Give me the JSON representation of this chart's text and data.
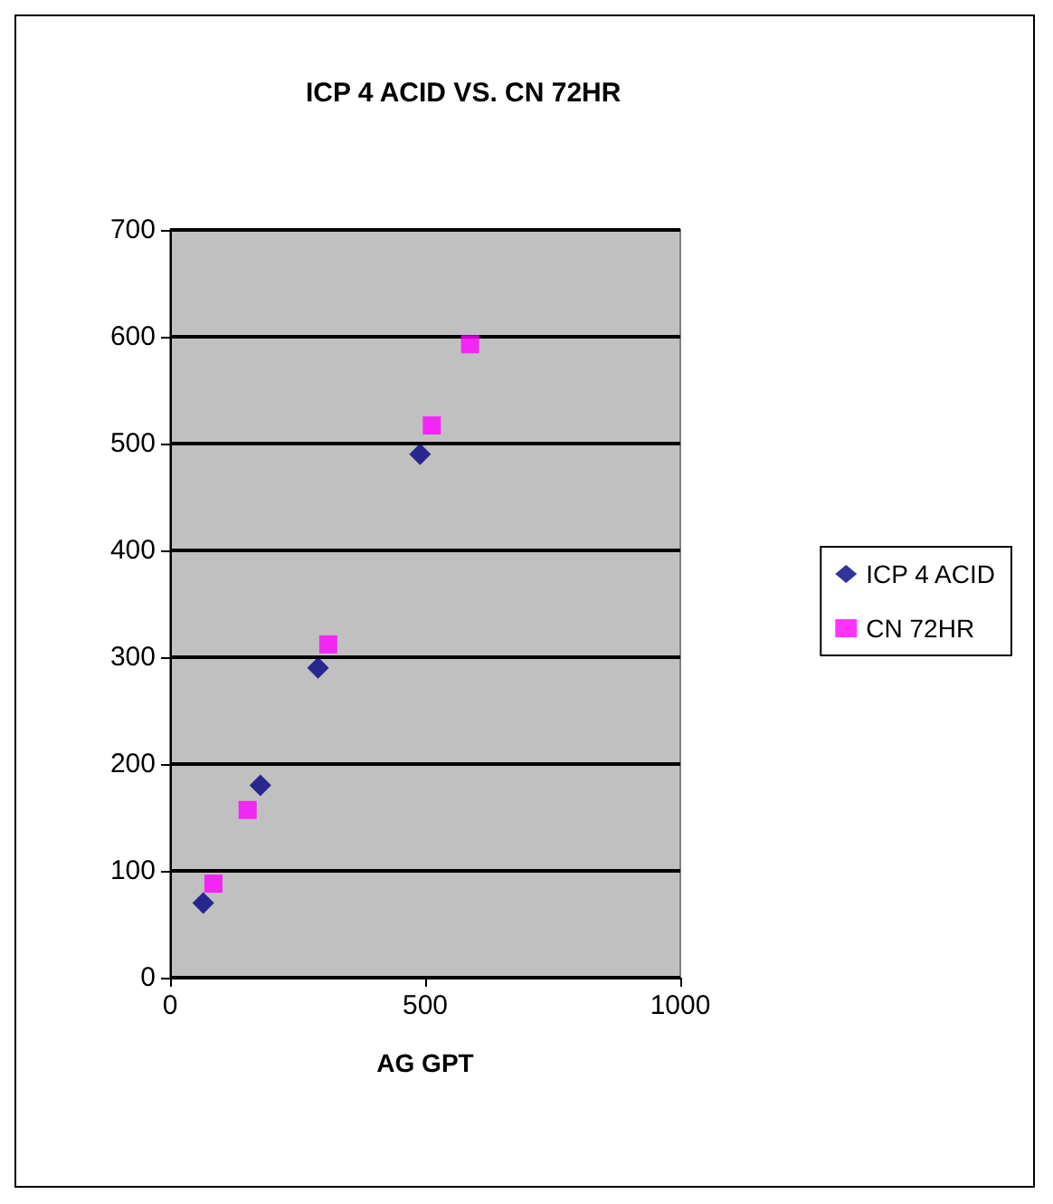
{
  "chart_data": {
    "type": "scatter",
    "title": "ICP 4 ACID VS. CN 72HR",
    "xlabel": "AG GPT",
    "xlim": [
      0,
      1000
    ],
    "xticks": [
      0,
      500,
      1000
    ],
    "ylim": [
      0,
      700
    ],
    "yticks": [
      0,
      100,
      200,
      300,
      400,
      500,
      600,
      700
    ],
    "grid": "y",
    "legend": "right",
    "series": [
      {
        "name": "ICP 4 ACID",
        "color": "#000080",
        "marker": "diamond",
        "x": [
          65,
          177,
          290,
          490
        ],
        "values": [
          70,
          180,
          290,
          490
        ]
      },
      {
        "name": "CN 72HR",
        "color": "#ff00ff",
        "marker": "square",
        "x": [
          85,
          152,
          310,
          513,
          588
        ],
        "values": [
          88,
          157,
          312,
          517,
          593
        ]
      }
    ]
  }
}
